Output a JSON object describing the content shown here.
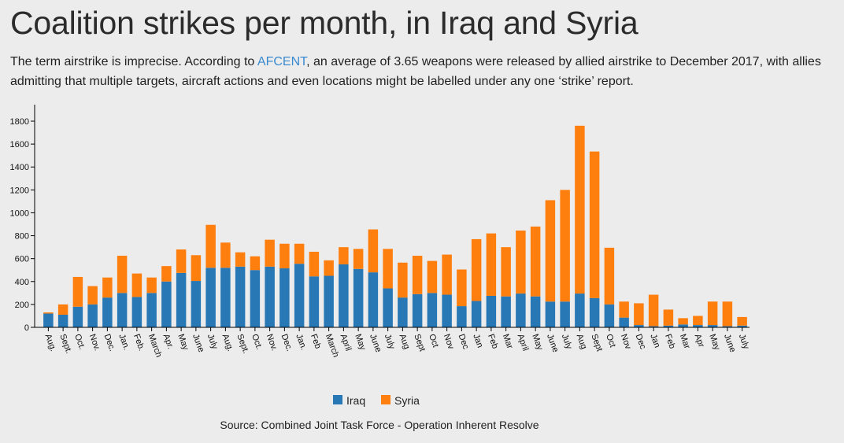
{
  "header": {
    "title": "Coalition strikes per month, in Iraq and Syria",
    "subtitle_before_link": "The term airstrike is imprecise. According to ",
    "subtitle_link": "AFCENT",
    "subtitle_after_link": ", an average of 3.65 weapons were released by allied airstrike to December 2017, with allies admitting that multiple targets, aircraft actions and even locations might be labelled under any one ‘strike’ report."
  },
  "colors": {
    "iraq": "#2878b5",
    "syria": "#ff7f0e",
    "link": "#3a8ad0",
    "background": "#ececec"
  },
  "chart_data": {
    "type": "bar",
    "stacked": true,
    "categories": [
      "Aug.",
      "Sept.",
      "Oct.",
      "Nov.",
      "Dec.",
      "Jan.",
      "Feb.",
      "March",
      "Apr.",
      "May",
      "June",
      "July",
      "Aug.",
      "Sept.",
      "Oct.",
      "Nov.",
      "Dec.",
      "Jan.",
      "Feb",
      "March",
      "April",
      "May",
      "June",
      "July",
      "Aug",
      "Sept",
      "Oct",
      "Nov",
      "Dec",
      "Jan",
      "Feb",
      "Mar",
      "April",
      "May",
      "June",
      "July",
      "Aug",
      "Sept",
      "Oct",
      "Nov",
      "Dec",
      "Jan",
      "Feb",
      "Mar",
      "Apr",
      "May",
      "June",
      "July"
    ],
    "series": [
      {
        "name": "Iraq",
        "values": [
          120,
          110,
          180,
          200,
          260,
          300,
          265,
          300,
          400,
          475,
          405,
          520,
          520,
          530,
          500,
          530,
          515,
          555,
          445,
          450,
          550,
          510,
          480,
          340,
          260,
          290,
          300,
          285,
          185,
          230,
          275,
          270,
          295,
          270,
          225,
          225,
          295,
          255,
          200,
          85,
          20,
          10,
          15,
          25,
          20,
          20,
          10,
          15
        ]
      },
      {
        "name": "Syria",
        "values": [
          10,
          90,
          260,
          160,
          175,
          325,
          205,
          135,
          135,
          205,
          225,
          375,
          220,
          125,
          120,
          235,
          215,
          175,
          215,
          135,
          150,
          175,
          375,
          345,
          305,
          335,
          280,
          350,
          320,
          540,
          545,
          430,
          550,
          610,
          885,
          975,
          1465,
          1280,
          495,
          140,
          190,
          275,
          140,
          55,
          80,
          205,
          215,
          75
        ]
      }
    ],
    "ylim": [
      0,
      1800
    ],
    "yticks": [
      0,
      200,
      400,
      600,
      800,
      1000,
      1200,
      1400,
      1600,
      1800
    ],
    "grid": false,
    "legend": "bottom-center",
    "xlabel": "",
    "ylabel": ""
  },
  "source": "Source: Combined Joint Task Force - Operation Inherent Resolve"
}
